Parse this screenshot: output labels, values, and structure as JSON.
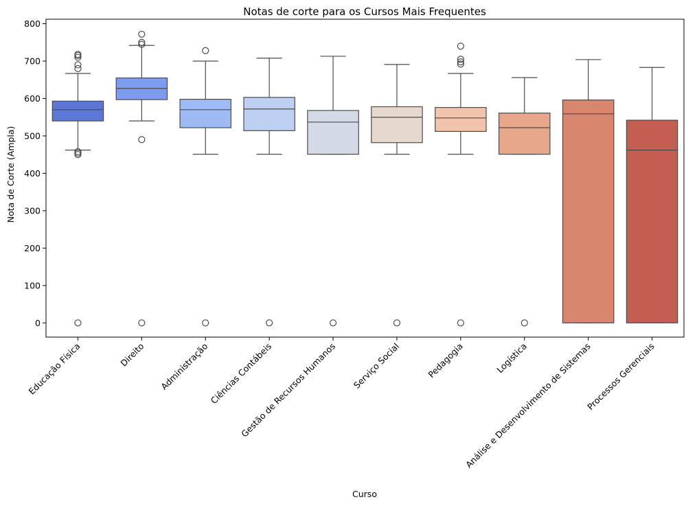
{
  "chart_data": {
    "type": "box",
    "title": "Notas de corte para os Cursos Mais Frequentes",
    "xlabel": "Curso",
    "ylabel": "Nota de Corte (Ampla)",
    "ylim": [
      -38,
      812
    ],
    "yticks": [
      0,
      100,
      200,
      300,
      400,
      500,
      600,
      700,
      800
    ],
    "grid": false,
    "legend": "none",
    "categories": [
      "Educação Física",
      "Direito",
      "Administração",
      "Ciências Contábeis",
      "Gestão de Recursos Humanos",
      "Serviço Social",
      "Pedagogia",
      "Logística",
      "Análise e Desenvolvimento de Sistemas",
      "Processos Gerenciais"
    ],
    "boxes": [
      {
        "whisker_low": 462,
        "q1": 540,
        "median": 570,
        "q3": 593,
        "whisker_high": 667,
        "outliers": [
          0,
          450,
          454,
          458,
          680,
          690,
          710,
          715,
          718
        ],
        "color": "#5c77d6"
      },
      {
        "whisker_low": 540,
        "q1": 597,
        "median": 627,
        "q3": 655,
        "whisker_high": 742,
        "outliers": [
          0,
          490,
          745,
          750,
          772
        ],
        "color": "#7d9cf0"
      },
      {
        "whisker_low": 451,
        "q1": 522,
        "median": 570,
        "q3": 598,
        "whisker_high": 700,
        "outliers": [
          0,
          728
        ],
        "color": "#9fbbf6"
      },
      {
        "whisker_low": 451,
        "q1": 514,
        "median": 572,
        "q3": 603,
        "whisker_high": 708,
        "outliers": [
          0
        ],
        "color": "#bdd0f4"
      },
      {
        "whisker_low": 451,
        "q1": 451,
        "median": 537,
        "q3": 568,
        "whisker_high": 713,
        "outliers": [
          0
        ],
        "color": "#d4dbe6"
      },
      {
        "whisker_low": 451,
        "q1": 482,
        "median": 550,
        "q3": 578,
        "whisker_high": 691,
        "outliers": [
          0
        ],
        "color": "#e6d8cf"
      },
      {
        "whisker_low": 451,
        "q1": 512,
        "median": 548,
        "q3": 576,
        "whisker_high": 667,
        "outliers": [
          0,
          692,
          698,
          705,
          740
        ],
        "color": "#f1c4ab"
      },
      {
        "whisker_low": 451,
        "q1": 451,
        "median": 522,
        "q3": 561,
        "whisker_high": 656,
        "outliers": [
          0
        ],
        "color": "#e8a78b"
      },
      {
        "whisker_low": 0,
        "q1": 0,
        "median": 559,
        "q3": 596,
        "whisker_high": 704,
        "outliers": [],
        "color": "#d8866e"
      },
      {
        "whisker_low": 0,
        "q1": 0,
        "median": 462,
        "q3": 542,
        "whisker_high": 683,
        "outliers": [],
        "color": "#c45e52"
      }
    ]
  }
}
